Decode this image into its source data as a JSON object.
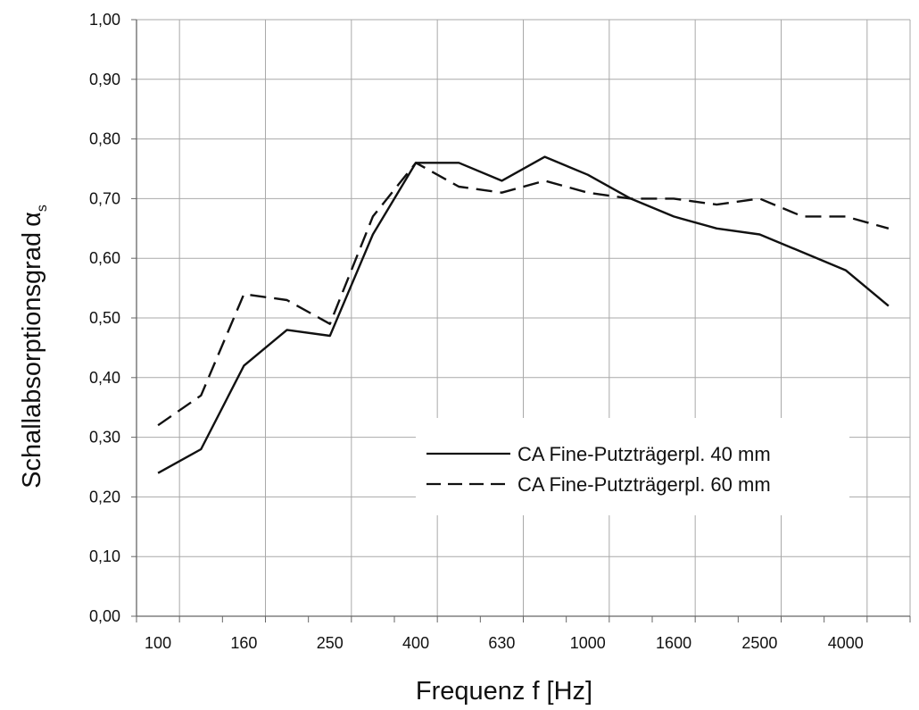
{
  "chart_data": {
    "type": "line",
    "xlabel": "Frequenz f [Hz]",
    "ylabel": "Schallabsorptionsgrad",
    "ylabel_symbol": "α",
    "ylabel_subscript": "s",
    "x": [
      "100",
      "125",
      "160",
      "200",
      "250",
      "315",
      "400",
      "500",
      "630",
      "800",
      "1000",
      "1250",
      "1600",
      "2000",
      "2500",
      "3150",
      "4000",
      "5000"
    ],
    "x_tick_labels": [
      "100",
      "160",
      "250",
      "400",
      "630",
      "1000",
      "1600",
      "2500",
      "4000"
    ],
    "ylim": [
      0,
      1
    ],
    "y_ticks": [
      "0,00",
      "0,10",
      "0,20",
      "0,30",
      "0,40",
      "0,50",
      "0,60",
      "0,70",
      "0,80",
      "0,90",
      "1,00"
    ],
    "grid": true,
    "legend_position": "lower-right",
    "series": [
      {
        "name": "CA Fine-Putzträgerpl. 40 mm",
        "style": "solid",
        "color": "#111111",
        "values": [
          0.24,
          0.28,
          0.42,
          0.48,
          0.47,
          0.64,
          0.76,
          0.76,
          0.73,
          0.77,
          0.74,
          0.7,
          0.67,
          0.65,
          0.64,
          0.61,
          0.58,
          0.52
        ]
      },
      {
        "name": "CA Fine-Putzträgerpl. 60 mm",
        "style": "dashed",
        "color": "#111111",
        "values": [
          0.32,
          0.37,
          0.54,
          0.53,
          0.49,
          0.67,
          0.76,
          0.72,
          0.71,
          0.73,
          0.71,
          0.7,
          0.7,
          0.69,
          0.7,
          0.67,
          0.67,
          0.65
        ]
      }
    ]
  }
}
